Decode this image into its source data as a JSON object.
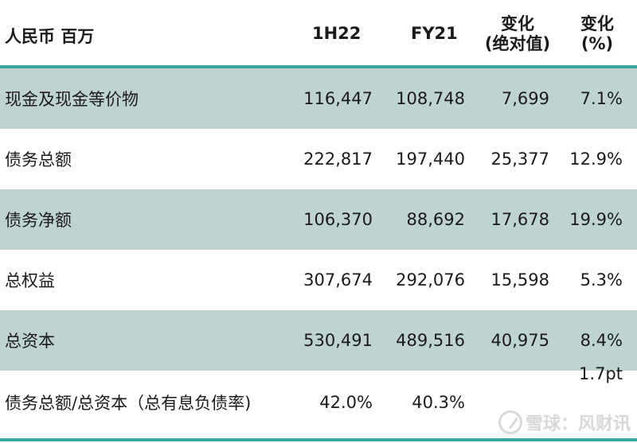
{
  "header": {
    "label": "人民币 百万",
    "col1": "1H22",
    "col2": "FY21",
    "col3_line1": "变化",
    "col3_line2": "(绝对值)",
    "col4_line1": "变化",
    "col4_line2": "(%)"
  },
  "rows": [
    {
      "label": "现金及现金等价物",
      "c1": "116,447",
      "c2": "108,748",
      "c3": "7,699",
      "c4": "7.1%"
    },
    {
      "label": "债务总额",
      "c1": "222,817",
      "c2": "197,440",
      "c3": "25,377",
      "c4": "12.9%"
    },
    {
      "label": "债务净额",
      "c1": "106,370",
      "c2": "88,692",
      "c3": "17,678",
      "c4": "19.9%"
    },
    {
      "label": "总权益",
      "c1": "307,674",
      "c2": "292,076",
      "c3": "15,598",
      "c4": "5.3%"
    },
    {
      "label": "总资本",
      "c1": "530,491",
      "c2": "489,516",
      "c3": "40,975",
      "c4": "8.4%"
    },
    {
      "label": "债务总额/总资本（总有息负债率)",
      "c1": "42.0%",
      "c2": "40.3%",
      "c3": "",
      "c4": "1.7pt"
    }
  ],
  "watermark": "雪球：风财讯"
}
